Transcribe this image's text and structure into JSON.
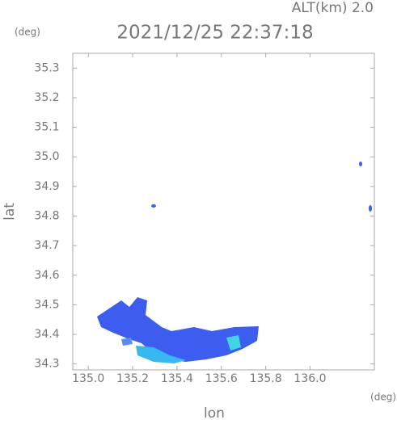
{
  "chart_data": {
    "type": "map",
    "altitude_label": "ALT(km) 2.0",
    "title": "2021/12/25 22:37:18",
    "y_unit": "(deg)",
    "x_unit": "(deg)",
    "xlabel": "lon",
    "ylabel": "lat",
    "xlim": [
      134.93,
      136.29
    ],
    "ylim": [
      34.28,
      35.35
    ],
    "xticks": [
      {
        "value": 135.0,
        "label": "135.0"
      },
      {
        "value": 135.2,
        "label": "135.2"
      },
      {
        "value": 135.4,
        "label": "135.4"
      },
      {
        "value": 135.6,
        "label": "135.6"
      },
      {
        "value": 135.8,
        "label": "135.8"
      },
      {
        "value": 136.0,
        "label": "136.0"
      }
    ],
    "yticks": [
      {
        "value": 34.3,
        "label": "34.3"
      },
      {
        "value": 34.4,
        "label": "34.4"
      },
      {
        "value": 34.5,
        "label": "34.5"
      },
      {
        "value": 34.6,
        "label": "34.6"
      },
      {
        "value": 34.7,
        "label": "34.7"
      },
      {
        "value": 34.8,
        "label": "34.8"
      },
      {
        "value": 34.9,
        "label": "34.9"
      },
      {
        "value": 35.0,
        "label": "35.0"
      },
      {
        "value": 35.1,
        "label": "35.1"
      },
      {
        "value": 35.2,
        "label": "35.2"
      },
      {
        "value": 35.3,
        "label": "35.3"
      }
    ]
  }
}
